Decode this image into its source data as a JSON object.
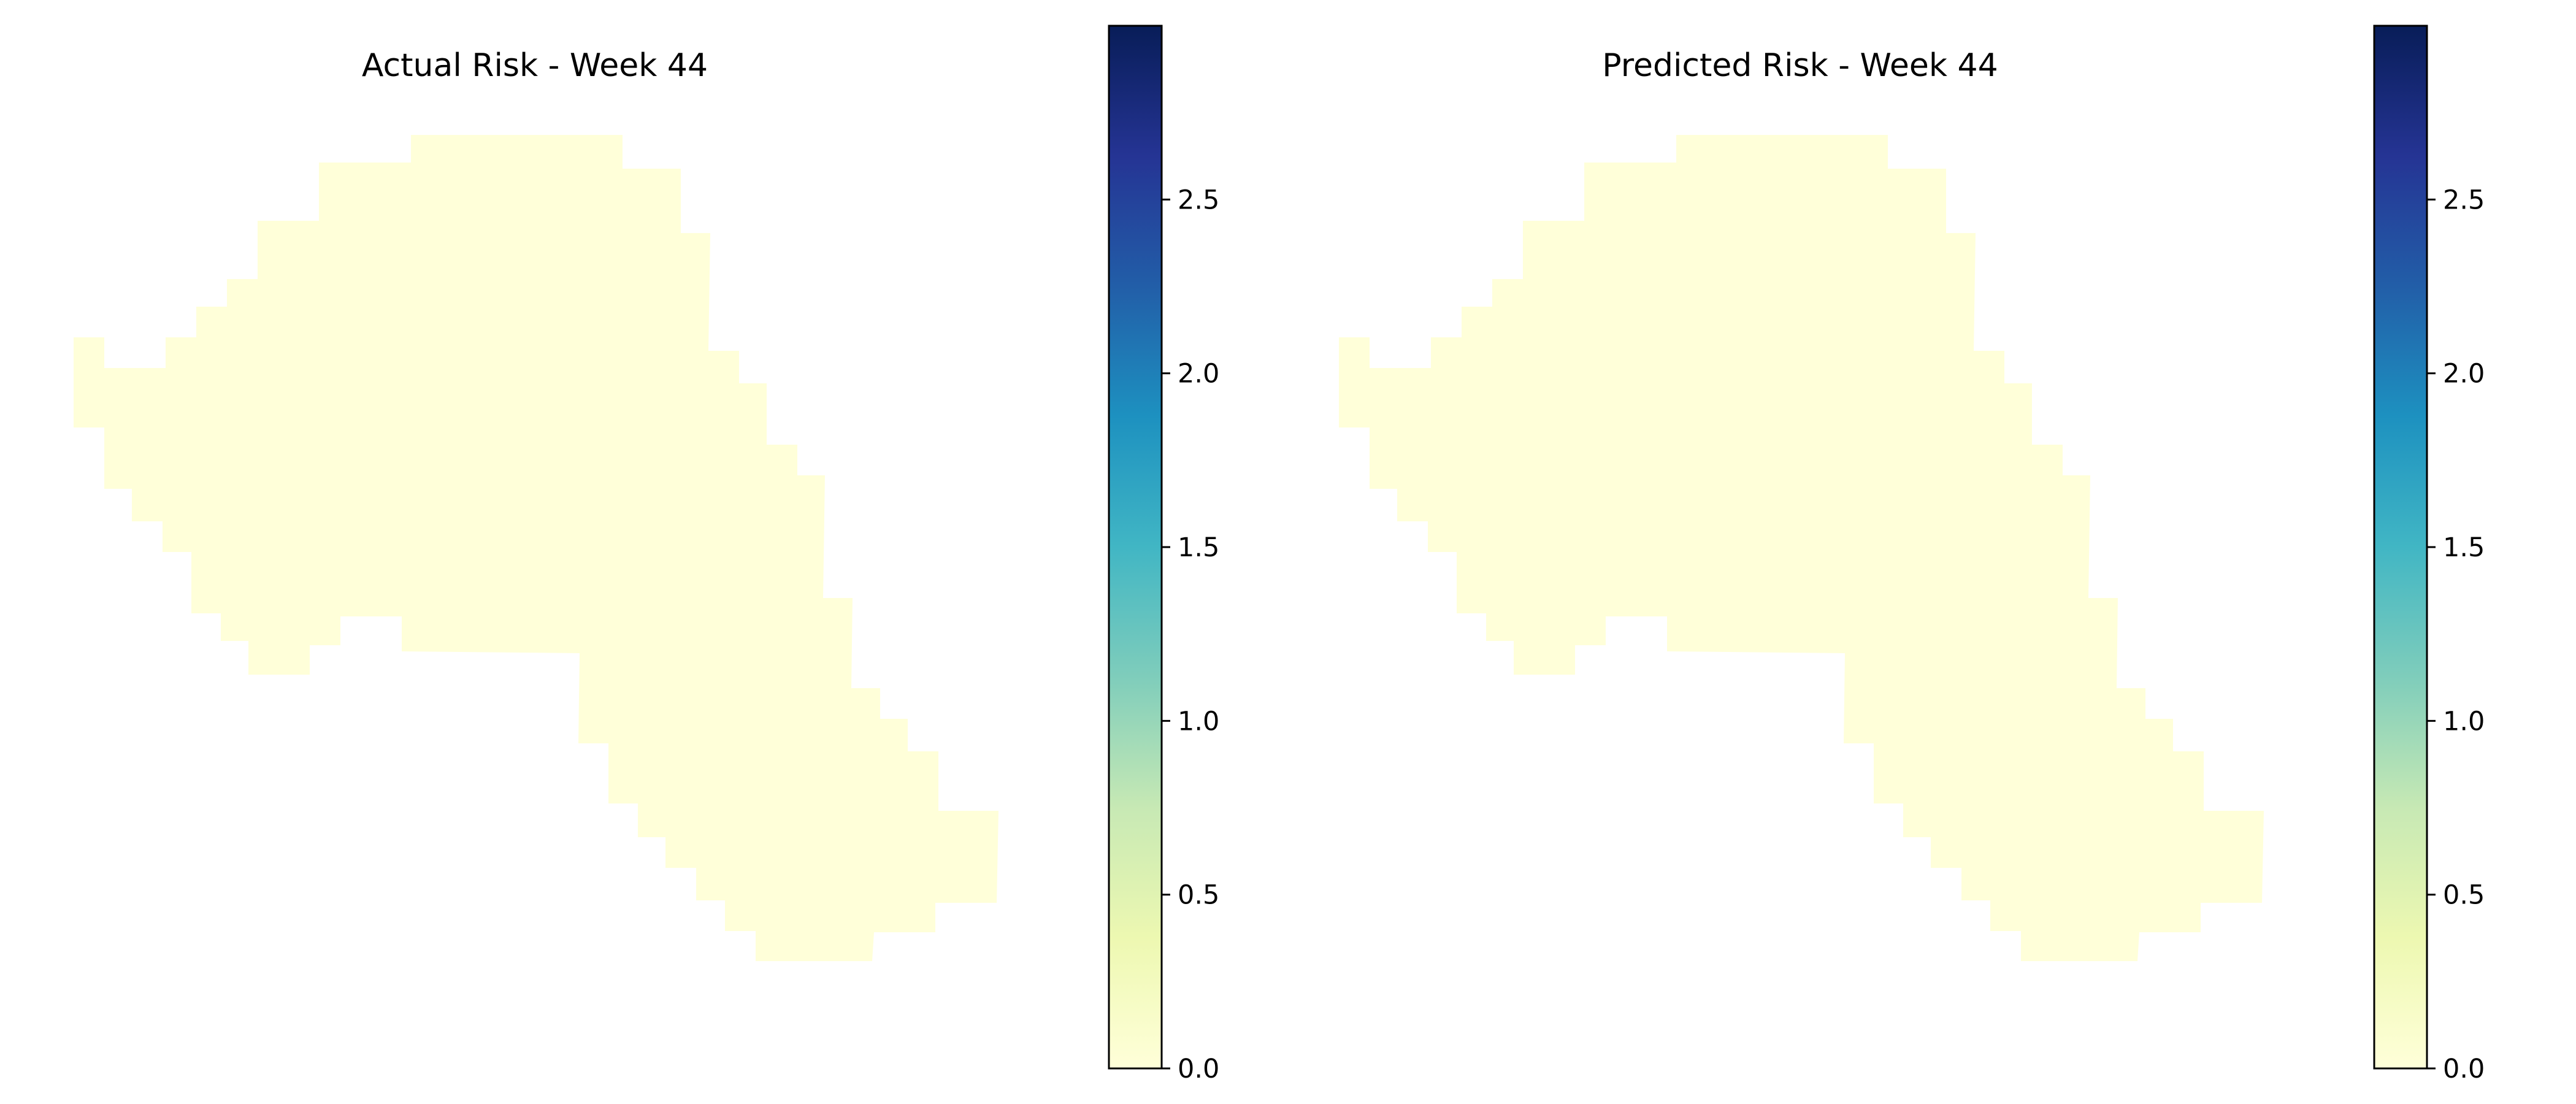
{
  "chart_data": [
    {
      "type": "heatmap",
      "title": "Actual Risk - Week 44",
      "xlabel": "",
      "ylabel": "",
      "grid": false,
      "cell_value": 0.0,
      "cell_color": "#ffffd9",
      "colorbar": {
        "vmin": 0.0,
        "vmax": 3.0,
        "ticks": [
          0.0,
          0.5,
          1.0,
          1.5,
          2.0,
          2.5
        ],
        "tick_labels": [
          "0.0",
          "0.5",
          "1.0",
          "1.5",
          "2.0",
          "2.5"
        ],
        "colormap": "YlGnBu",
        "colors": [
          "#ffffd9",
          "#edf8b1",
          "#c7e9b4",
          "#7fcdbb",
          "#41b6c4",
          "#1d91c0",
          "#225ea8",
          "#253494",
          "#081d58"
        ]
      }
    },
    {
      "type": "heatmap",
      "title": "Predicted Risk - Week 44",
      "xlabel": "",
      "ylabel": "",
      "grid": false,
      "cell_value": 0.0,
      "cell_color": "#ffffd9",
      "colorbar": {
        "vmin": 0.0,
        "vmax": 3.0,
        "ticks": [
          0.0,
          0.5,
          1.0,
          1.5,
          2.0,
          2.5
        ],
        "tick_labels": [
          "0.0",
          "0.5",
          "1.0",
          "1.5",
          "2.0",
          "2.5"
        ],
        "colormap": "YlGnBu",
        "colors": [
          "#ffffd9",
          "#edf8b1",
          "#c7e9b4",
          "#7fcdbb",
          "#41b6c4",
          "#1d91c0",
          "#225ea8",
          "#253494",
          "#081d58"
        ]
      }
    }
  ]
}
